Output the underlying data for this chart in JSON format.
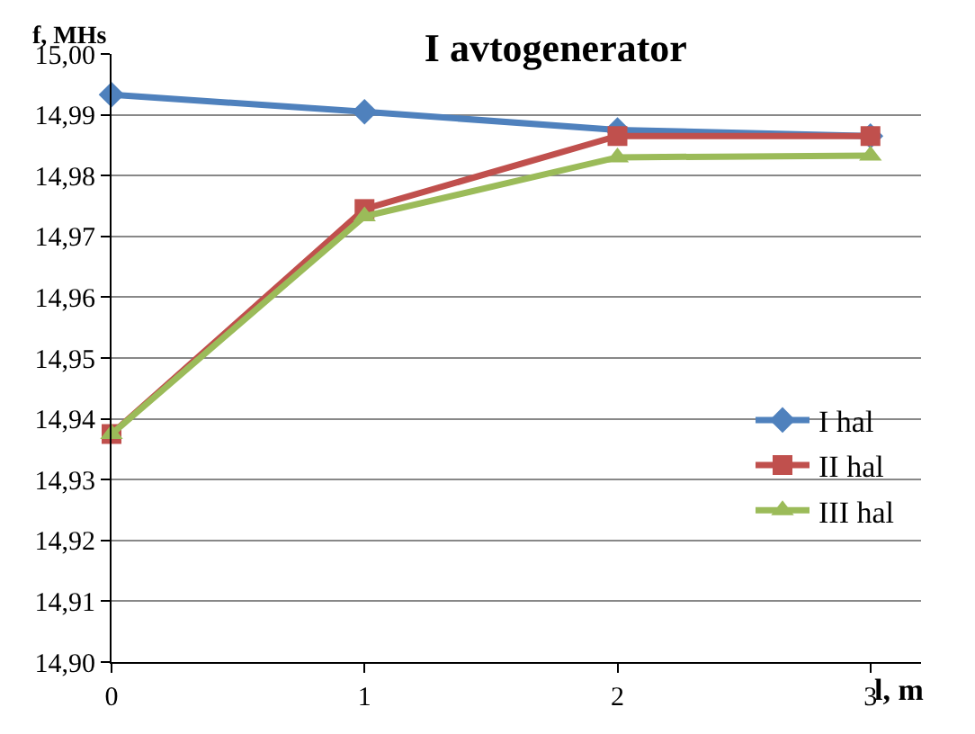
{
  "chart_data": {
    "type": "line",
    "title": "I avtogenerator",
    "xlabel": "l, m",
    "ylabel": "f, MHs",
    "x": [
      0,
      1,
      2,
      3
    ],
    "series": [
      {
        "name": "I hal",
        "color": "#4f81bd",
        "marker": "diamond",
        "values": [
          14.9933,
          14.9905,
          14.9875,
          14.9865
        ]
      },
      {
        "name": "II hal",
        "color": "#c0504d",
        "marker": "square",
        "values": [
          14.9375,
          14.9745,
          14.9865,
          14.9865
        ]
      },
      {
        "name": "III hal",
        "color": "#9bbb59",
        "marker": "triangle",
        "values": [
          14.9375,
          14.9733,
          14.983,
          14.9833
        ]
      }
    ],
    "xlim": [
      0,
      3.2
    ],
    "xticks": [
      0,
      1,
      2,
      3
    ],
    "ylim": [
      14.9,
      15.0
    ],
    "yticks": [
      {
        "value": 14.9,
        "label": "14,90"
      },
      {
        "value": 14.91,
        "label": "14,91"
      },
      {
        "value": 14.92,
        "label": "14,92"
      },
      {
        "value": 14.93,
        "label": "14,93"
      },
      {
        "value": 14.94,
        "label": "14,94"
      },
      {
        "value": 14.95,
        "label": "14,95"
      },
      {
        "value": 14.96,
        "label": "14,96"
      },
      {
        "value": 14.97,
        "label": "14,97"
      },
      {
        "value": 14.98,
        "label": "14,98"
      },
      {
        "value": 14.99,
        "label": "14,99"
      },
      {
        "value": 15.0,
        "label": "15,00"
      }
    ],
    "grid": "y",
    "legend": "right",
    "line_style": "solid"
  }
}
